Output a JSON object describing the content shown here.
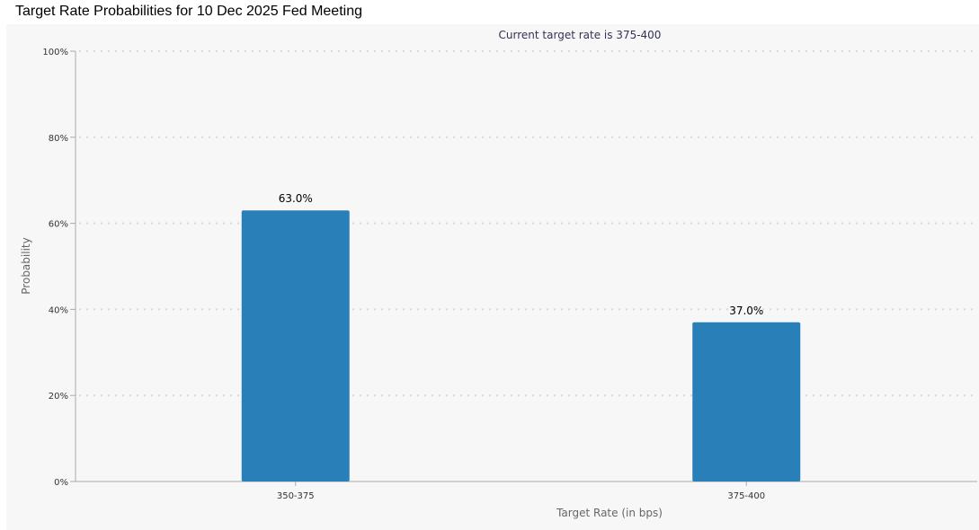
{
  "page": {
    "title": "Target Rate Probabilities for 10 Dec 2025 Fed Meeting"
  },
  "chart_data": {
    "type": "bar",
    "title": "Target Rate Probabilities for 10 Dec 2025 Fed Meeting",
    "subtitle": "Current target rate is 375-400",
    "xlabel": "Target Rate (in bps)",
    "ylabel": "Probability",
    "categories": [
      "350-375",
      "375-400"
    ],
    "values": [
      63.0,
      37.0
    ],
    "data_labels": [
      "63.0%",
      "37.0%"
    ],
    "ylim": [
      0,
      100
    ],
    "yticks": [
      0,
      20,
      40,
      60,
      80,
      100
    ],
    "ytick_labels": [
      "0%",
      "20%",
      "40%",
      "60%",
      "80%",
      "100%"
    ],
    "grid": true,
    "bar_color": "#2980b9"
  }
}
